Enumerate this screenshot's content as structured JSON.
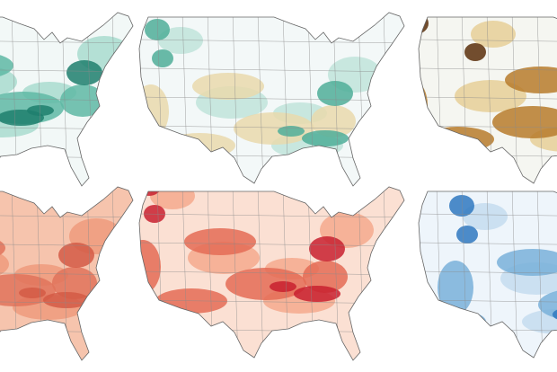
{
  "panels": [
    {
      "base": "#f2f8f7",
      "shades": [
        "#a9dccf",
        "#5fb8a5",
        "#1e7f6d"
      ]
    },
    {
      "base": "#f3f8f8",
      "shades": [
        "#bfe4da",
        "#e9d9ad",
        "#4fae99"
      ]
    },
    {
      "base": "#f5f6f1",
      "shades": [
        "#e6cf98",
        "#b77b2b",
        "#5a2f0c"
      ]
    },
    {
      "base": "#f6c4ad",
      "shades": [
        "#ee9b7c",
        "#e0735a",
        "#d45a45"
      ]
    },
    {
      "base": "#fbe0d3",
      "shades": [
        "#f4a98d",
        "#e46b55",
        "#c8202f"
      ]
    },
    {
      "base": "#eef5fb",
      "shades": [
        "#c4dcef",
        "#79b0d9",
        "#2f78bf"
      ]
    }
  ]
}
